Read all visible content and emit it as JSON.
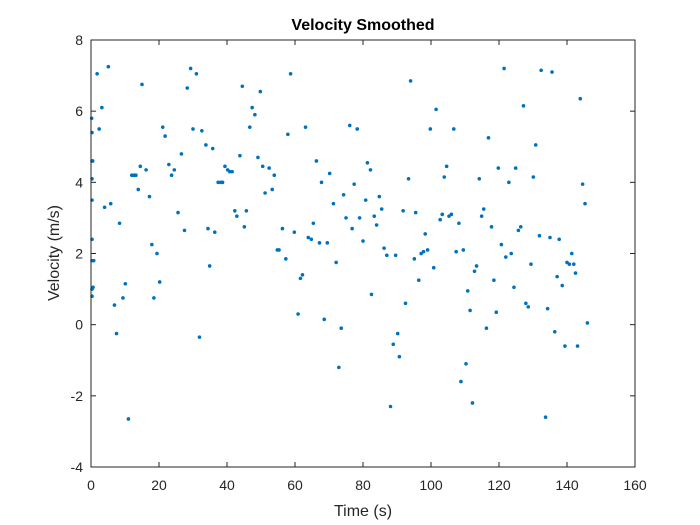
{
  "chart_data": {
    "type": "scatter",
    "title": "Velocity Smoothed",
    "xlabel": "Time (s)",
    "ylabel": "Velocity (m/s)",
    "xlim": [
      0,
      160
    ],
    "ylim": [
      -4,
      8
    ],
    "xticks": [
      0,
      20,
      40,
      60,
      80,
      100,
      120,
      140,
      160
    ],
    "yticks": [
      -4,
      -2,
      0,
      2,
      4,
      6,
      8
    ],
    "grid": false,
    "marker_color": "#0072BD",
    "points": [
      [
        0.2,
        5.8
      ],
      [
        0.3,
        5.4
      ],
      [
        0.3,
        4.6
      ],
      [
        0.3,
        4.1
      ],
      [
        0.3,
        3.5
      ],
      [
        0.3,
        2.4
      ],
      [
        0.3,
        1.8
      ],
      [
        0.3,
        1.0
      ],
      [
        0.3,
        0.8
      ],
      [
        0.5,
        4.6
      ],
      [
        0.6,
        1.05
      ],
      [
        0.8,
        1.8
      ],
      [
        1.8,
        7.05
      ],
      [
        2.4,
        5.5
      ],
      [
        3.2,
        6.1
      ],
      [
        4.0,
        3.3
      ],
      [
        5.1,
        7.25
      ],
      [
        5.8,
        3.4
      ],
      [
        6.9,
        0.55
      ],
      [
        7.5,
        -0.25
      ],
      [
        8.4,
        2.85
      ],
      [
        9.4,
        0.75
      ],
      [
        10.1,
        1.15
      ],
      [
        11.0,
        -2.65
      ],
      [
        12.0,
        4.2
      ],
      [
        12.7,
        4.2
      ],
      [
        13.2,
        4.2
      ],
      [
        13.9,
        3.8
      ],
      [
        14.5,
        4.45
      ],
      [
        15.0,
        6.75
      ],
      [
        16.2,
        4.35
      ],
      [
        17.2,
        3.6
      ],
      [
        17.9,
        2.25
      ],
      [
        18.5,
        0.75
      ],
      [
        19.4,
        2.0
      ],
      [
        20.2,
        1.2
      ],
      [
        21.1,
        5.55
      ],
      [
        21.8,
        5.3
      ],
      [
        22.9,
        4.5
      ],
      [
        23.7,
        4.2
      ],
      [
        24.5,
        4.35
      ],
      [
        25.6,
        3.15
      ],
      [
        26.6,
        4.8
      ],
      [
        27.5,
        2.65
      ],
      [
        28.3,
        6.65
      ],
      [
        29.3,
        7.2
      ],
      [
        30.0,
        5.5
      ],
      [
        31.0,
        7.05
      ],
      [
        31.9,
        -0.35
      ],
      [
        32.6,
        5.45
      ],
      [
        33.8,
        5.05
      ],
      [
        34.4,
        2.7
      ],
      [
        34.9,
        1.65
      ],
      [
        35.8,
        4.95
      ],
      [
        36.4,
        2.6
      ],
      [
        37.4,
        4.0
      ],
      [
        38.2,
        4.0
      ],
      [
        38.7,
        4.0
      ],
      [
        39.4,
        4.45
      ],
      [
        40.2,
        4.35
      ],
      [
        40.8,
        4.3
      ],
      [
        41.5,
        4.3
      ],
      [
        42.3,
        3.2
      ],
      [
        42.9,
        3.05
      ],
      [
        43.8,
        4.75
      ],
      [
        44.5,
        6.7
      ],
      [
        45.7,
        3.2
      ],
      [
        45.1,
        2.75
      ],
      [
        46.7,
        5.55
      ],
      [
        47.4,
        6.1
      ],
      [
        48.2,
        5.9
      ],
      [
        49.1,
        4.7
      ],
      [
        49.8,
        6.55
      ],
      [
        50.5,
        4.45
      ],
      [
        51.2,
        3.7
      ],
      [
        52.4,
        4.4
      ],
      [
        53.3,
        3.8
      ],
      [
        53.9,
        4.2
      ],
      [
        54.8,
        2.1
      ],
      [
        55.3,
        2.1
      ],
      [
        56.3,
        2.7
      ],
      [
        57.3,
        1.85
      ],
      [
        57.9,
        5.35
      ],
      [
        58.7,
        7.05
      ],
      [
        59.8,
        2.6
      ],
      [
        60.9,
        0.3
      ],
      [
        61.6,
        1.3
      ],
      [
        62.2,
        1.4
      ],
      [
        63.1,
        5.55
      ],
      [
        63.9,
        2.45
      ],
      [
        64.8,
        2.4
      ],
      [
        65.4,
        2.85
      ],
      [
        66.3,
        4.6
      ],
      [
        67.2,
        2.3
      ],
      [
        67.8,
        4.0
      ],
      [
        68.6,
        0.15
      ],
      [
        69.5,
        2.3
      ],
      [
        70.2,
        4.25
      ],
      [
        71.3,
        3.4
      ],
      [
        72.1,
        1.75
      ],
      [
        72.9,
        -1.2
      ],
      [
        73.6,
        -0.1
      ],
      [
        74.3,
        3.65
      ],
      [
        75.0,
        3.0
      ],
      [
        76.1,
        5.6
      ],
      [
        76.8,
        2.7
      ],
      [
        77.4,
        3.95
      ],
      [
        78.3,
        5.5
      ],
      [
        79.0,
        3.0
      ],
      [
        80.0,
        2.35
      ],
      [
        80.8,
        3.5
      ],
      [
        81.3,
        4.55
      ],
      [
        82.2,
        4.35
      ],
      [
        82.5,
        0.85
      ],
      [
        83.3,
        3.05
      ],
      [
        84.0,
        2.8
      ],
      [
        84.8,
        3.6
      ],
      [
        85.5,
        3.25
      ],
      [
        86.2,
        2.15
      ],
      [
        87.0,
        1.95
      ],
      [
        88.1,
        -2.3
      ],
      [
        88.9,
        -0.55
      ],
      [
        89.6,
        1.95
      ],
      [
        90.2,
        -0.25
      ],
      [
        90.7,
        -0.9
      ],
      [
        91.8,
        3.2
      ],
      [
        92.5,
        0.6
      ],
      [
        93.4,
        4.1
      ],
      [
        94.0,
        6.85
      ],
      [
        95.1,
        1.85
      ],
      [
        95.5,
        3.15
      ],
      [
        96.4,
        1.25
      ],
      [
        97.1,
        2.0
      ],
      [
        97.8,
        2.05
      ],
      [
        98.3,
        2.55
      ],
      [
        99.0,
        2.1
      ],
      [
        99.8,
        5.5
      ],
      [
        100.8,
        1.6
      ],
      [
        101.5,
        6.05
      ],
      [
        102.7,
        2.95
      ],
      [
        103.3,
        3.1
      ],
      [
        103.9,
        4.15
      ],
      [
        104.6,
        4.45
      ],
      [
        105.3,
        3.05
      ],
      [
        106.0,
        3.1
      ],
      [
        106.7,
        5.5
      ],
      [
        107.4,
        2.05
      ],
      [
        108.2,
        2.85
      ],
      [
        108.8,
        -1.6
      ],
      [
        109.5,
        2.1
      ],
      [
        110.3,
        -1.1
      ],
      [
        110.8,
        0.95
      ],
      [
        111.5,
        0.4
      ],
      [
        112.2,
        -2.2
      ],
      [
        112.8,
        1.5
      ],
      [
        113.4,
        1.65
      ],
      [
        114.2,
        4.1
      ],
      [
        114.9,
        3.05
      ],
      [
        115.5,
        3.25
      ],
      [
        116.3,
        -0.1
      ],
      [
        116.9,
        5.25
      ],
      [
        117.8,
        2.75
      ],
      [
        118.5,
        1.25
      ],
      [
        119.2,
        0.35
      ],
      [
        119.8,
        4.4
      ],
      [
        120.7,
        2.25
      ],
      [
        121.5,
        7.2
      ],
      [
        122.0,
        1.9
      ],
      [
        122.9,
        4.0
      ],
      [
        123.6,
        2.0
      ],
      [
        124.4,
        1.05
      ],
      [
        124.9,
        4.4
      ],
      [
        125.7,
        2.65
      ],
      [
        126.4,
        2.75
      ],
      [
        127.2,
        6.15
      ],
      [
        127.9,
        0.6
      ],
      [
        128.6,
        0.5
      ],
      [
        129.4,
        1.7
      ],
      [
        130.1,
        4.15
      ],
      [
        130.8,
        5.05
      ],
      [
        131.9,
        2.5
      ],
      [
        132.4,
        7.15
      ],
      [
        133.7,
        -2.6
      ],
      [
        134.3,
        0.45
      ],
      [
        135.0,
        2.45
      ],
      [
        135.6,
        7.1
      ],
      [
        136.4,
        -0.2
      ],
      [
        137.1,
        1.35
      ],
      [
        137.7,
        2.4
      ],
      [
        138.6,
        1.1
      ],
      [
        139.4,
        -0.6
      ],
      [
        140.0,
        1.75
      ],
      [
        140.7,
        1.7
      ],
      [
        141.4,
        2.0
      ],
      [
        142.0,
        1.7
      ],
      [
        142.5,
        1.45
      ],
      [
        143.1,
        -0.6
      ],
      [
        143.9,
        6.35
      ],
      [
        144.6,
        3.95
      ],
      [
        145.3,
        3.4
      ],
      [
        146.0,
        0.05
      ]
    ]
  }
}
